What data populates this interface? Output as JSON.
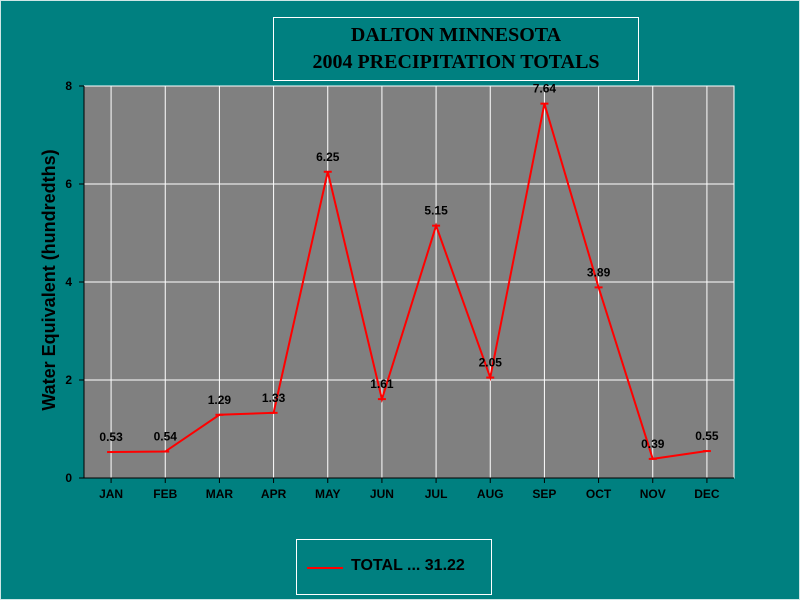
{
  "chart_data": {
    "type": "line",
    "title_lines": [
      "DALTON MINNESOTA",
      "2004 PRECIPITATION TOTALS"
    ],
    "xlabel": "",
    "ylabel": "Water Equivalent (hundredths)",
    "categories": [
      "JAN",
      "FEB",
      "MAR",
      "APR",
      "MAY",
      "JUN",
      "JUL",
      "AUG",
      "SEP",
      "OCT",
      "NOV",
      "DEC"
    ],
    "series": [
      {
        "name": "TOTAL ... 31.22",
        "values": [
          0.53,
          0.54,
          1.29,
          1.33,
          6.25,
          1.61,
          5.15,
          2.05,
          7.64,
          3.89,
          0.39,
          0.55
        ],
        "data_labels": [
          "0.53",
          "0.54",
          "1.29",
          "1.33",
          "6.25",
          "1.61",
          "5.15",
          "2.05",
          "7.64",
          "3.89",
          "0.39",
          "0.55"
        ],
        "color": "#ff0000"
      }
    ],
    "ylim": [
      0,
      8
    ],
    "yticks": [
      0,
      2,
      4,
      6,
      8
    ],
    "grid": true,
    "plot_background": "#808080",
    "page_background": "#008080",
    "legend_position": "bottom-center"
  }
}
